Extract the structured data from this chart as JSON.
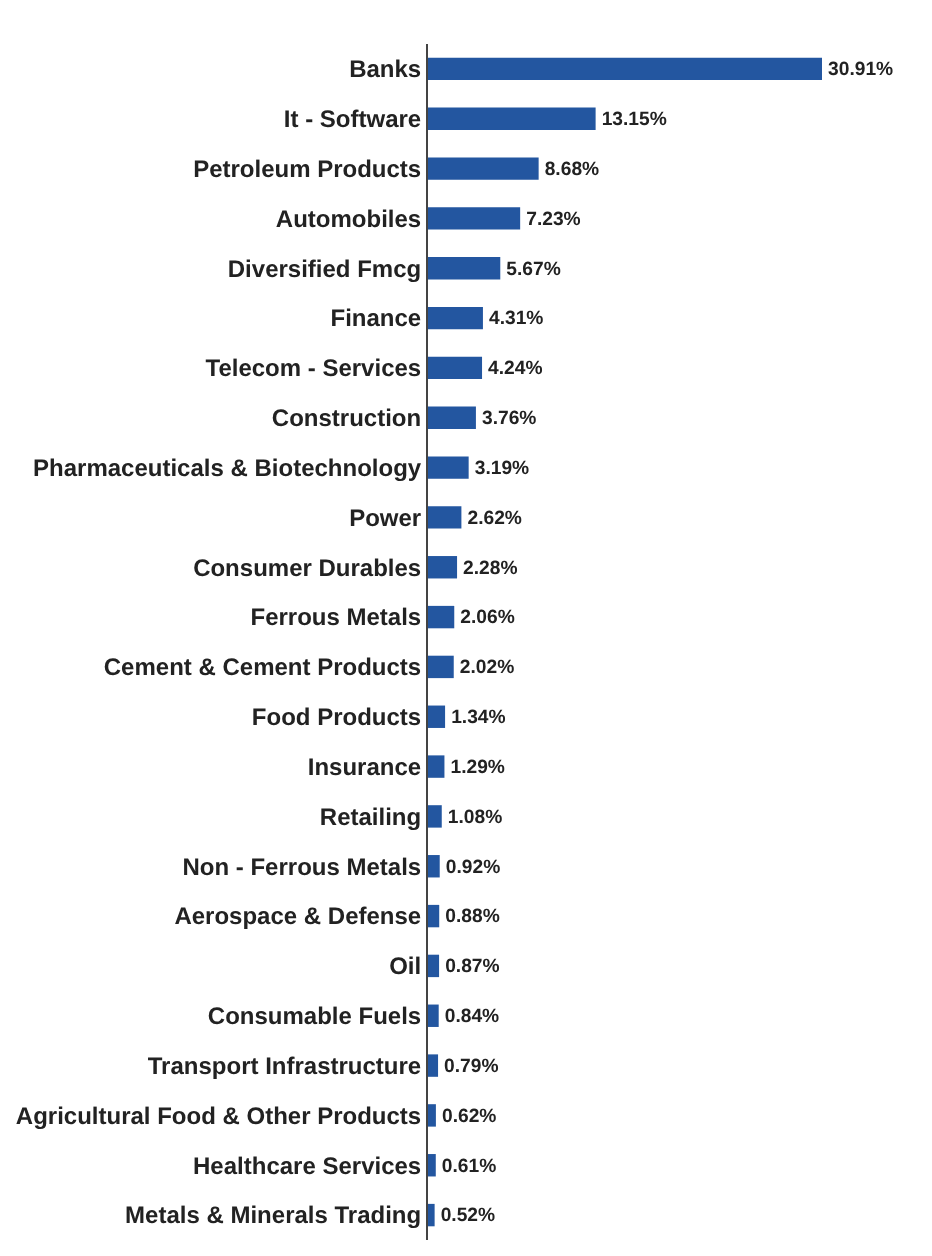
{
  "chart_data": {
    "type": "bar",
    "orientation": "horizontal",
    "color": "#2356a0",
    "categories": [
      "Banks",
      "It - Software",
      "Petroleum Products",
      "Automobiles",
      "Diversified Fmcg",
      "Finance",
      "Telecom - Services",
      "Construction",
      "Pharmaceuticals & Biotechnology",
      "Power",
      "Consumer Durables",
      "Ferrous Metals",
      "Cement & Cement Products",
      "Food Products",
      "Insurance",
      "Retailing",
      "Non - Ferrous Metals",
      "Aerospace & Defense",
      "Oil",
      "Consumable Fuels",
      "Transport Infrastructure",
      "Agricultural Food & Other Products",
      "Healthcare Services",
      "Metals & Minerals Trading"
    ],
    "values": [
      30.91,
      13.15,
      8.68,
      7.23,
      5.67,
      4.31,
      4.24,
      3.76,
      3.19,
      2.62,
      2.28,
      2.06,
      2.02,
      1.34,
      1.29,
      1.08,
      0.92,
      0.88,
      0.87,
      0.84,
      0.79,
      0.62,
      0.61,
      0.52
    ],
    "value_labels": [
      "30.91%",
      "13.15%",
      "8.68%",
      "7.23%",
      "5.67%",
      "4.31%",
      "4.24%",
      "3.76%",
      "3.19%",
      "2.62%",
      "2.28%",
      "2.06%",
      "2.02%",
      "1.34%",
      "1.29%",
      "1.08%",
      "0.92%",
      "0.88%",
      "0.87%",
      "0.84%",
      "0.79%",
      "0.62%",
      "0.61%",
      "0.52%"
    ],
    "legend": false,
    "tick_labels": "y"
  }
}
